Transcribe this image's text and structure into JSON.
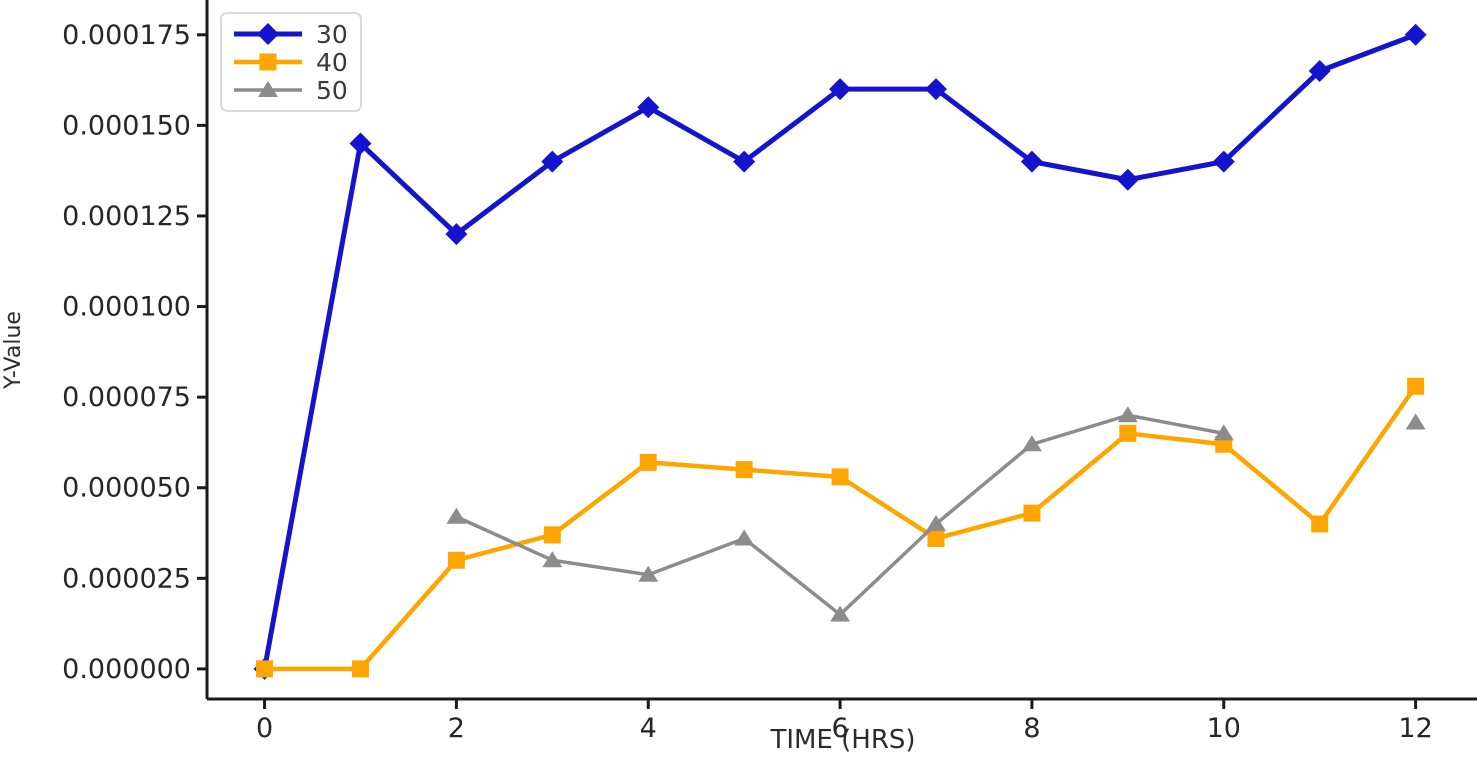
{
  "figure": {
    "background": "#ffffff",
    "axis_color": "#1a1a1a",
    "tick_text_color": "#262626",
    "label_text_color": "#2b2b2b"
  },
  "chart_data": {
    "type": "line",
    "title": "",
    "xlabel": "TIME (HRS)",
    "ylabel": "Y-Value",
    "grid": false,
    "legend_position": "upper left",
    "x": [
      0,
      1,
      2,
      3,
      4,
      5,
      6,
      7,
      8,
      9,
      10,
      11,
      12
    ],
    "xticks": [
      0,
      2,
      4,
      6,
      8,
      10,
      12
    ],
    "xtick_labels": [
      "0",
      "2",
      "4",
      "6",
      "8",
      "10",
      "12"
    ],
    "yticks": [
      0.0,
      2.5e-05,
      5e-05,
      7.5e-05,
      0.0001,
      0.000125,
      0.00015,
      0.000175
    ],
    "ytick_labels": [
      "0.000000",
      "0.000025",
      "0.000050",
      "0.000075",
      "0.000100",
      "0.000125",
      "0.000150",
      "0.000175"
    ],
    "xlim": [
      -0.6,
      12.64
    ],
    "ylim": [
      -8.3e-06,
      0.0001846
    ],
    "series": [
      {
        "name": "30",
        "color": "#1414cc",
        "marker": "diamond",
        "line_width": 5,
        "values": [
          0.0,
          0.000145,
          0.00012,
          0.00014,
          0.000155,
          0.00014,
          0.00016,
          0.00016,
          0.00014,
          0.000135,
          0.00014,
          0.000165,
          0.000175
        ]
      },
      {
        "name": "40",
        "color": "#ffa500",
        "marker": "square",
        "line_width": 4.5,
        "values": [
          0.0,
          0.0,
          3e-05,
          3.7e-05,
          5.7e-05,
          5.5e-05,
          5.3e-05,
          3.6e-05,
          4.3e-05,
          6.5e-05,
          6.2e-05,
          4e-05,
          7.8e-05
        ]
      },
      {
        "name": "50",
        "color": "#8c8c8c",
        "marker": "triangle",
        "line_width": 3.5,
        "values": [
          null,
          null,
          4.2e-05,
          3e-05,
          2.6e-05,
          3.6e-05,
          1.5e-05,
          4e-05,
          6.2e-05,
          7e-05,
          6.5e-05,
          null,
          6.8e-05
        ]
      }
    ]
  }
}
